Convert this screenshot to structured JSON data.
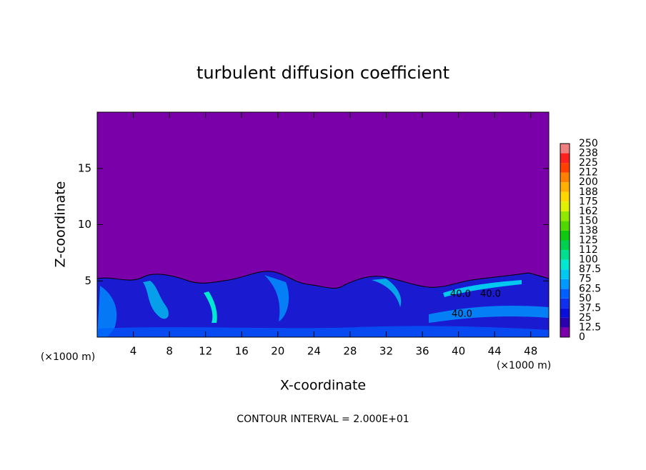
{
  "chart_data": {
    "type": "contour",
    "title": "turbulent diffusion coefficient",
    "x_label": "X-coordinate",
    "y_label": "Z-coordinate",
    "x_unit": "(×1000 m)",
    "footnote": "CONTOUR INTERVAL = 2.000E+01",
    "contour_labels": [
      "40.0",
      "40.0",
      "40.0"
    ],
    "xlim": [
      0,
      50
    ],
    "xticks": [
      4,
      8,
      12,
      16,
      20,
      24,
      28,
      32,
      36,
      40,
      44,
      48
    ],
    "ylim": [
      0,
      20
    ],
    "yticks": [
      5,
      10,
      15
    ],
    "background_color": "#7a00aa",
    "colorbar": {
      "levels": [
        0,
        12.5,
        25,
        37.5,
        50,
        62.5,
        75,
        87.5,
        100,
        112,
        125,
        138,
        150,
        162,
        175,
        188,
        200,
        212,
        225,
        238,
        250
      ],
      "colors": [
        "#7a00aa",
        "#2a00b0",
        "#0a10d8",
        "#1030f0",
        "#0060ff",
        "#0099ff",
        "#00c8f0",
        "#00e8d0",
        "#00e090",
        "#00d050",
        "#10c810",
        "#50d800",
        "#90e800",
        "#e0f000",
        "#ffd800",
        "#ffb000",
        "#ff8000",
        "#ff4000",
        "#ff2020",
        "#f08080"
      ]
    }
  }
}
